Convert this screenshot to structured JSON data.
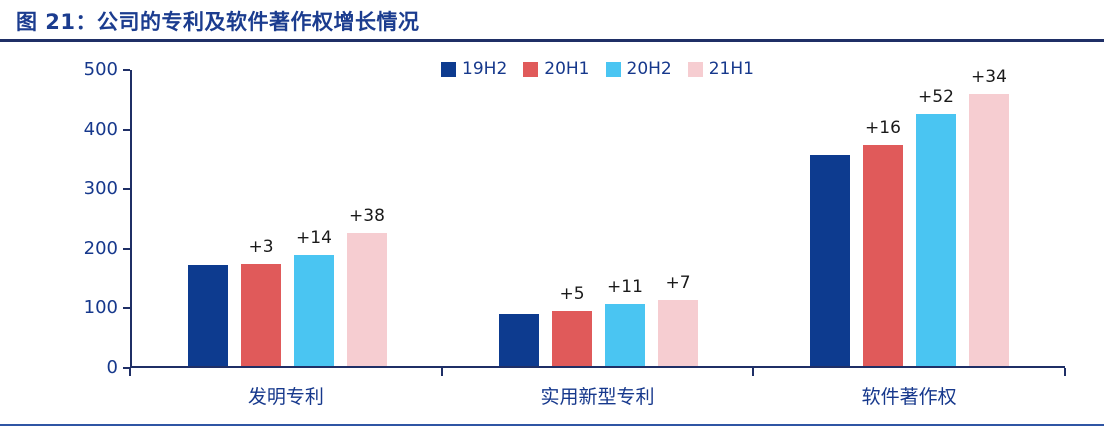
{
  "title": "图 21：公司的专利及软件著作权增长情况",
  "colors": {
    "title": "#1B3C8F",
    "top_rule": "#1F2F66",
    "bottom_rule": "#2F55A4",
    "axis": "#1F2F66",
    "axis_label": "#16388C",
    "bar_label": "#1A1A1A"
  },
  "chart_data": {
    "type": "bar",
    "title": "图 21：公司的专利及软件著作权增长情况",
    "categories": [
      "发明专利",
      "实用新型专利",
      "软件著作权"
    ],
    "series": [
      {
        "name": "19H2",
        "color": "#0D3B8F",
        "values": [
          170,
          88,
          357
        ]
      },
      {
        "name": "20H1",
        "color": "#E05A5A",
        "values": [
          173,
          93,
          373
        ]
      },
      {
        "name": "20H2",
        "color": "#4AC5F2",
        "values": [
          187,
          104,
          425
        ]
      },
      {
        "name": "21H1",
        "color": "#F6CDD1",
        "values": [
          225,
          111,
          459
        ]
      }
    ],
    "bar_labels": [
      [
        "",
        "+3",
        "+14",
        "+38"
      ],
      [
        "",
        "+5",
        "+11",
        "+7"
      ],
      [
        "",
        "+16",
        "+52",
        "+34"
      ]
    ],
    "ylim": [
      0,
      500
    ],
    "yticks": [
      0,
      100,
      200,
      300,
      400,
      500
    ],
    "grid": false,
    "legend_position": "top-center",
    "legend": [
      "19H2",
      "20H1",
      "20H2",
      "21H1"
    ]
  }
}
